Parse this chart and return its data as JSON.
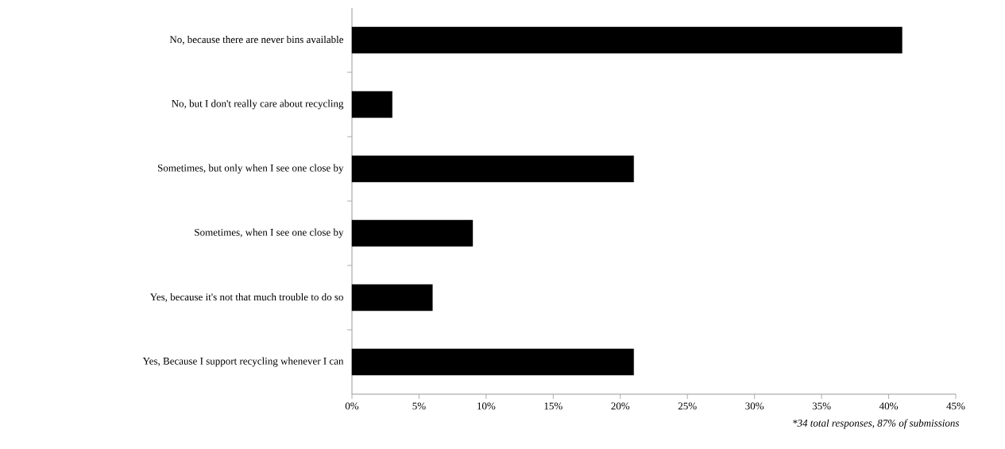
{
  "chart_data": {
    "type": "bar",
    "orientation": "horizontal",
    "categories": [
      "No, because there are never bins available",
      "No, but I don't really care about recycling",
      "Sometimes, but only when I see one close by",
      "Sometimes, when I see one close by",
      "Yes, because it's not that much trouble to do so",
      "Yes, Because I support recycling whenever I can"
    ],
    "values": [
      41,
      3,
      21,
      9,
      6,
      21
    ],
    "color": "#000000",
    "xlim": [
      0,
      45
    ],
    "xticks": [
      {
        "value": 0,
        "label": "0%"
      },
      {
        "value": 5,
        "label": "5%"
      },
      {
        "value": 10,
        "label": "10%"
      },
      {
        "value": 15,
        "label": "15%"
      },
      {
        "value": 20,
        "label": "20%"
      },
      {
        "value": 25,
        "label": "25%"
      },
      {
        "value": 30,
        "label": "30%"
      },
      {
        "value": 35,
        "label": "35%"
      },
      {
        "value": 40,
        "label": "40%"
      },
      {
        "value": 45,
        "label": "45%"
      }
    ],
    "annotations": [
      "*34 total responses, 87% of submissions"
    ]
  }
}
